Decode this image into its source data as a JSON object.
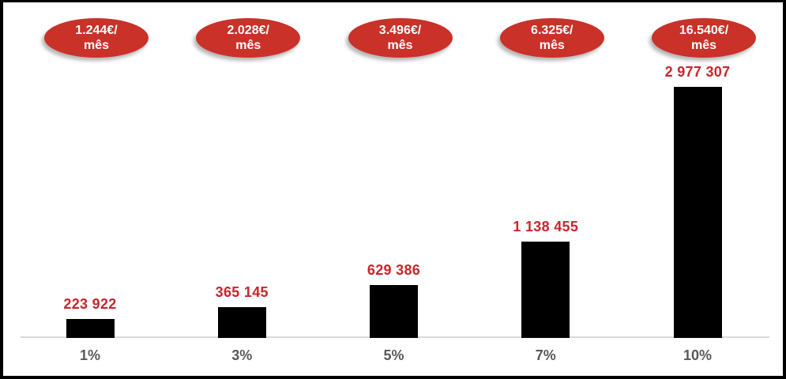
{
  "page": {
    "background": "#ffffff",
    "frame_border_color": "#000000"
  },
  "chart_data": {
    "type": "bar",
    "title": "",
    "xlabel": "",
    "ylabel": "",
    "categories": [
      "1%",
      "3%",
      "5%",
      "7%",
      "10%"
    ],
    "values": [
      223922,
      365145,
      629386,
      1138455,
      2977307
    ],
    "value_labels": [
      "223 922",
      "365 145",
      "629 386",
      "1 138 455",
      "2 977 307"
    ],
    "badges": [
      {
        "label": "1.244€/mês",
        "lines": [
          "1.244€/",
          "mês"
        ]
      },
      {
        "label": "2.028€/mês",
        "lines": [
          "2.028€/",
          "mês"
        ]
      },
      {
        "label": "3.496€/mês",
        "lines": [
          "3.496€/",
          "mês"
        ]
      },
      {
        "label": "6.325€/mês",
        "lines": [
          "6.325€/",
          "mês"
        ]
      },
      {
        "label": "16.540€/mês",
        "lines": [
          "16.540€/",
          "mês"
        ]
      }
    ],
    "ylim": [
      0,
      3000000
    ],
    "grid": false,
    "legend": null,
    "colors": {
      "bar": "#000000",
      "value_label": "#C7262C",
      "badge_fill": "#CA3129",
      "badge_text": "#ffffff",
      "axis_line": "#D9D9D9",
      "tick_label": "#595959"
    }
  }
}
